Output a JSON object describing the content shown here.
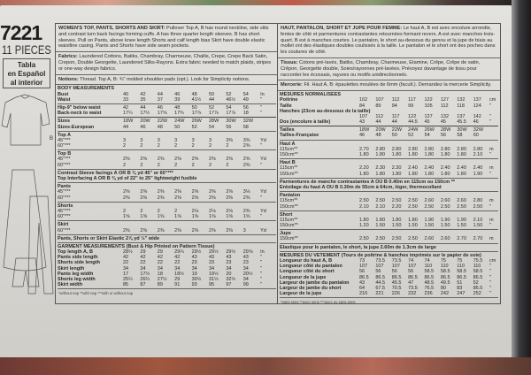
{
  "cover": {
    "pattern_number": "7221",
    "pieces": "11 PIECES",
    "spanish": [
      "Tabla",
      "en Español",
      "al interior"
    ]
  },
  "illustration": {
    "labels": [
      "A",
      "B"
    ]
  },
  "en": {
    "title": "WOMEN'S TOP, PANTS, SHORTS AND SKIRT:",
    "description": "Pullover Top A, B has round neckline, side slits and contrast turn back facings forming cuffs. A has three quarter length sleeves. B has short sleeves. Pull on Pants, above knee length Shorts and calf length bias Skirt have double elastic waistline casing. Pants and Shorts have side seam pockets.",
    "fabrics_label": "Fabrics:",
    "fabrics": "Laundered Cottons, Batiks, Chambray, Charmeuse, Challis, Crepe, Crepe Back Satin, Crepon, Double Georgette, Laundered Silks-Rayons. Extra fabric needed to match plaids, stripes or one-way design fabrics.",
    "notions_label": "Notions:",
    "notions": "Thread. Top A, B: ¾\" molded shoulder pads (opt.). Look for Simplicity notions.",
    "groups": [
      {
        "rows": [
          {
            "label": "BODY MEASUREMENTS",
            "values": []
          },
          {
            "label": "Bust",
            "values": [
              "40",
              "42",
              "44",
              "46",
              "48",
              "50",
              "52",
              "54"
            ],
            "unit": "In"
          },
          {
            "label": "Waist",
            "values": [
              "33",
              "35",
              "37",
              "39",
              "41½",
              "44",
              "46½",
              "49"
            ],
            "unit": "\""
          }
        ]
      },
      {
        "rows": [
          {
            "label": "Hip-9\" below waist",
            "values": [
              "42",
              "44",
              "46",
              "48",
              "50",
              "52",
              "54",
              "56"
            ],
            "unit": "\""
          },
          {
            "label": "Back-neck to waist",
            "values": [
              "17¼",
              "17½",
              "17⅝",
              "17¾",
              "17⅞",
              "17⅞",
              "17⅞",
              "18"
            ],
            "unit": "\""
          }
        ]
      },
      {
        "rows": [
          {
            "label": "Sizes",
            "values": [
              "18W",
              "20W",
              "22W",
              "24W",
              "26W",
              "28W",
              "30W",
              "32W"
            ]
          },
          {
            "label": "Sizes-European",
            "values": [
              "44",
              "46",
              "48",
              "50",
              "52",
              "54",
              "56",
              "58"
            ]
          }
        ]
      },
      {
        "rows": [
          {
            "label": "Top A",
            "values": []
          },
          {
            "label": "45\"***",
            "values": [
              "3",
              "3",
              "3",
              "3",
              "3",
              "3",
              "3⅜",
              "3⅜"
            ],
            "unit": "Yd"
          },
          {
            "label": "60\"***",
            "values": [
              "2",
              "2",
              "2",
              "2",
              "2",
              "2",
              "2",
              "2⅜"
            ],
            "unit": "\""
          }
        ]
      },
      {
        "rows": [
          {
            "label": "Top B",
            "values": []
          },
          {
            "label": "45\"***",
            "values": [
              "2⅜",
              "2⅜",
              "2⅜",
              "2⅜",
              "2⅜",
              "2⅜",
              "2⅜",
              "2⅜"
            ],
            "unit": "Yd"
          },
          {
            "label": "60\"***",
            "values": [
              "2",
              "2",
              "2",
              "2",
              "2",
              "2",
              "2",
              "2⅜"
            ],
            "unit": "\""
          }
        ]
      },
      {
        "rows": [
          {
            "label": "Contrast Sleeve facings A OR B ⅜ yd 45\" or 60\"***",
            "values": []
          },
          {
            "label": "Top Interfacing A OR B ⅜ yd of 22\" to 25\" lightweight fusible",
            "values": []
          }
        ]
      },
      {
        "rows": [
          {
            "label": "Pants",
            "values": []
          },
          {
            "label": "45\"***",
            "values": [
              "2⅜",
              "2⅜",
              "2⅜",
              "2⅜",
              "2⅜",
              "2⅜",
              "2⅜",
              "3⅛"
            ],
            "unit": "Yd"
          },
          {
            "label": "60\"***",
            "values": [
              "2⅜",
              "2⅜",
              "2⅜",
              "2⅜",
              "2⅜",
              "2⅜",
              "2⅜",
              "2⅜"
            ],
            "unit": "\""
          }
        ]
      },
      {
        "rows": [
          {
            "label": "Shorts",
            "values": []
          },
          {
            "label": "45\"***",
            "values": [
              "2",
              "2",
              "2",
              "2",
              "2⅛",
              "2⅛",
              "2⅛",
              "2⅜"
            ],
            "unit": "Yd"
          },
          {
            "label": "60\"***",
            "values": [
              "1⅝",
              "1⅝",
              "1⅝",
              "1⅝",
              "1⅝",
              "1⅝",
              "1⅝",
              "1⅝"
            ],
            "unit": "\""
          }
        ]
      },
      {
        "rows": [
          {
            "label": "Skirt",
            "values": []
          },
          {
            "label": "60\"***",
            "values": [
              "2⅜",
              "2⅜",
              "2⅜",
              "2⅜",
              "2⅜",
              "2⅜",
              "2⅜",
              "3"
            ],
            "unit": "Yd"
          }
        ]
      },
      {
        "rows": [
          {
            "label": "Pants, Shorts or Skirt Elastic 2⅞ yd ½\" wide",
            "values": []
          }
        ]
      },
      {
        "rows": [
          {
            "label": "GARMENT MEASUREMENTS (Bust & Hip Printed on Pattern Tissue)",
            "values": []
          },
          {
            "label": "Top length A, B",
            "values": [
              "28½",
              "29",
              "29",
              "29¼",
              "29½",
              "29½",
              "29½",
              "29⅝"
            ],
            "unit": "In"
          },
          {
            "label": "Pants side length",
            "values": [
              "42",
              "42",
              "42",
              "42",
              "43",
              "43",
              "43",
              "43"
            ],
            "unit": "\""
          },
          {
            "label": "Shorts side length",
            "values": [
              "22",
              "22",
              "22",
              "22",
              "23",
              "23",
              "23",
              "23"
            ],
            "unit": "\""
          },
          {
            "label": "Skirt length",
            "values": [
              "34",
              "34",
              "34",
              "34",
              "34",
              "34",
              "34",
              "34"
            ],
            "unit": "\""
          },
          {
            "label": "Pants leg width",
            "values": [
              "17",
              "17½",
              "18",
              "18½",
              "19",
              "19½",
              "20",
              "20½"
            ],
            "unit": "\""
          },
          {
            "label": "Shorts leg width",
            "values": [
              "25¼",
              "26¼",
              "27½",
              "29",
              "30½",
              "31½",
              "32½",
              "34"
            ],
            "unit": "\""
          },
          {
            "label": "Skirt width",
            "values": [
              "85",
              "87",
              "89",
              "91",
              "93",
              "95",
              "97",
              "99"
            ],
            "unit": "\""
          }
        ]
      }
    ],
    "footnote": "*without nap   **with nap   ***with or without nap"
  },
  "fr": {
    "title": "HAUT, PANTALON, SHORT ET JUPE POUR FEMME:",
    "description": "Le haut A, B est avec encolure arrondie, fentes de côté et parmentures contrastantes retournées formant revers. A est avec manches trois-quart. B est à manches courtes. Le pantalon, le short au-dessous du genou et la jupe de biais au mollet ont des élastiques doubles coulissés à la taille. Le pantalon et le short ont des poches dans les coutures de côté.",
    "fabrics_label": "Tissus:",
    "fabrics": "Cotons pré-lavés, Batiks, Chambray, Charmeuse, Etamine, Crêpe, Crêpe de satin, Crêpon, Georgette double, Soies/rayonnes pré-lavées. Prévoyez davantage de tissu pour raccorder les écossais, rayures ou motifs unidirectionnels.",
    "notions_label": "Mercerie:",
    "notions": "Fil. Haut A, B: épaulettes moulées de 6mm (facult.). Demandez la mercerie Simplicity.",
    "groups": [
      {
        "rows": [
          {
            "label": "MESURES NORMALISEES",
            "values": []
          },
          {
            "label": "Poitrine",
            "values": [
              "102",
              "107",
              "112",
              "117",
              "122",
              "127",
              "132",
              "137"
            ],
            "unit": "cm"
          },
          {
            "label": "Taille",
            "values": [
              "84",
              "89",
              "94",
              "99",
              "105",
              "112",
              "118",
              "124"
            ],
            "unit": "\""
          },
          {
            "label": "Hanches (23cm au-dessous de la taille)",
            "values": []
          },
          {
            "label": "",
            "values": [
              "107",
              "112",
              "117",
              "122",
              "127",
              "132",
              "137",
              "142"
            ],
            "unit": "\""
          },
          {
            "label": "Dos (encolure à taille)",
            "values": [
              "43",
              "44",
              "44",
              "44.5",
              "45",
              "45",
              "45.5",
              "46"
            ],
            "unit": "\""
          }
        ]
      },
      {
        "rows": [
          {
            "label": "Tailles",
            "values": [
              "18W",
              "20W",
              "22W",
              "24W",
              "26W",
              "28W",
              "30W",
              "32W"
            ]
          },
          {
            "label": "Tailles-Française",
            "values": [
              "46",
              "48",
              "50",
              "52",
              "54",
              "56",
              "58",
              "60"
            ]
          }
        ]
      },
      {
        "rows": [
          {
            "label": "Haut A",
            "values": []
          },
          {
            "label": "115cm**",
            "values": [
              "2.70",
              "2.80",
              "2.80",
              "2.80",
              "2.80",
              "2.80",
              "2.80",
              "2.80"
            ],
            "unit": "m"
          },
          {
            "label": "150cm**",
            "values": [
              "1.80",
              "1.80",
              "1.80",
              "1.80",
              "1.80",
              "1.80",
              "1.80",
              "2.10"
            ],
            "unit": "\""
          }
        ]
      },
      {
        "rows": [
          {
            "label": "Haut B",
            "values": []
          },
          {
            "label": "115cm**",
            "values": [
              "2.20",
              "2.30",
              "2.30",
              "2.40",
              "2.40",
              "2.40",
              "2.40",
              "2.40"
            ],
            "unit": "m"
          },
          {
            "label": "150cm**",
            "values": [
              "1.80",
              "1.80",
              "1.80",
              "1.80",
              "1.80",
              "1.80",
              "1.80",
              "1.90"
            ],
            "unit": "\""
          }
        ]
      },
      {
        "rows": [
          {
            "label": "Parmentures de manche contrastantes A OU B 0.40m en 115cm ou 150cm **",
            "values": []
          },
          {
            "label": "Entoilage du haut A OU B 0.30m de 55cm à 64cm, léger, thermocollant",
            "values": []
          }
        ]
      },
      {
        "rows": [
          {
            "label": "Pantalon",
            "values": []
          },
          {
            "label": "115cm**",
            "values": [
              "2.50",
              "2.50",
              "2.50",
              "2.50",
              "2.60",
              "2.60",
              "2.60",
              "2.80"
            ],
            "unit": "m"
          },
          {
            "label": "150cm**",
            "values": [
              "2.10",
              "2.10",
              "2.20",
              "2.50",
              "2.50",
              "2.50",
              "2.50",
              "2.50"
            ],
            "unit": "\""
          }
        ]
      },
      {
        "rows": [
          {
            "label": "Short",
            "values": []
          },
          {
            "label": "115cm**",
            "values": [
              "1.80",
              "1.80",
              "1.80",
              "1.80",
              "1.90",
              "1.90",
              "1.90",
              "2.10"
            ],
            "unit": "m"
          },
          {
            "label": "150cm**",
            "values": [
              "1.20",
              "1.50",
              "1.50",
              "1.50",
              "1.50",
              "1.50",
              "1.50",
              "1.50"
            ],
            "unit": "\""
          }
        ]
      },
      {
        "rows": [
          {
            "label": "Jupe",
            "values": []
          },
          {
            "label": "150cm**",
            "values": [
              "2.50",
              "2.50",
              "2.50",
              "2.50",
              "2.60",
              "2.60",
              "2.70",
              "2.70"
            ],
            "unit": "m"
          }
        ]
      },
      {
        "rows": [
          {
            "label": "Elastique pour le pantalon, le short, la jupe 2.60m de 1.3cm de large",
            "values": []
          }
        ]
      },
      {
        "rows": [
          {
            "label": "MESURES DU VETEMENT (Tours de poitrine & hanches imprimés sur le papier de soie)",
            "values": []
          },
          {
            "label": "Longueur du haut A, B",
            "values": [
              "73",
              "73.5",
              "73.5",
              "74",
              "74",
              "75",
              "75",
              "75.5"
            ],
            "unit": "cm"
          },
          {
            "label": "Longueur côté du pantalon",
            "values": [
              "107",
              "107",
              "107",
              "107",
              "110",
              "110",
              "110",
              "110"
            ],
            "unit": "\""
          },
          {
            "label": "Longueur côté du short",
            "values": [
              "56",
              "56",
              "56",
              "56",
              "58.5",
              "58.5",
              "58.5",
              "58.5"
            ],
            "unit": "\""
          },
          {
            "label": "Longueur de la jupe",
            "values": [
              "86.5",
              "86.5",
              "86.5",
              "86.5",
              "86.5",
              "86.5",
              "86.5",
              "86.5"
            ],
            "unit": "\""
          },
          {
            "label": "Largeur de jambe du pantalon",
            "values": [
              "43",
              "44.5",
              "45.5",
              "47",
              "48.5",
              "49.5",
              "51",
              "52"
            ],
            "unit": "\""
          },
          {
            "label": "Largeur de jambe du short",
            "values": [
              "64",
              "67.5",
              "70.5",
              "73.5",
              "76.5",
              "80",
              "83",
              "86.5"
            ],
            "unit": "\""
          },
          {
            "label": "Largeur de la jupe",
            "values": [
              "216",
              "221",
              "226",
              "232",
              "236",
              "242",
              "247",
              "252"
            ],
            "unit": "\""
          }
        ]
      }
    ],
    "footnote": "*sans sens   **avec sens   ***avec ou sans sens"
  }
}
